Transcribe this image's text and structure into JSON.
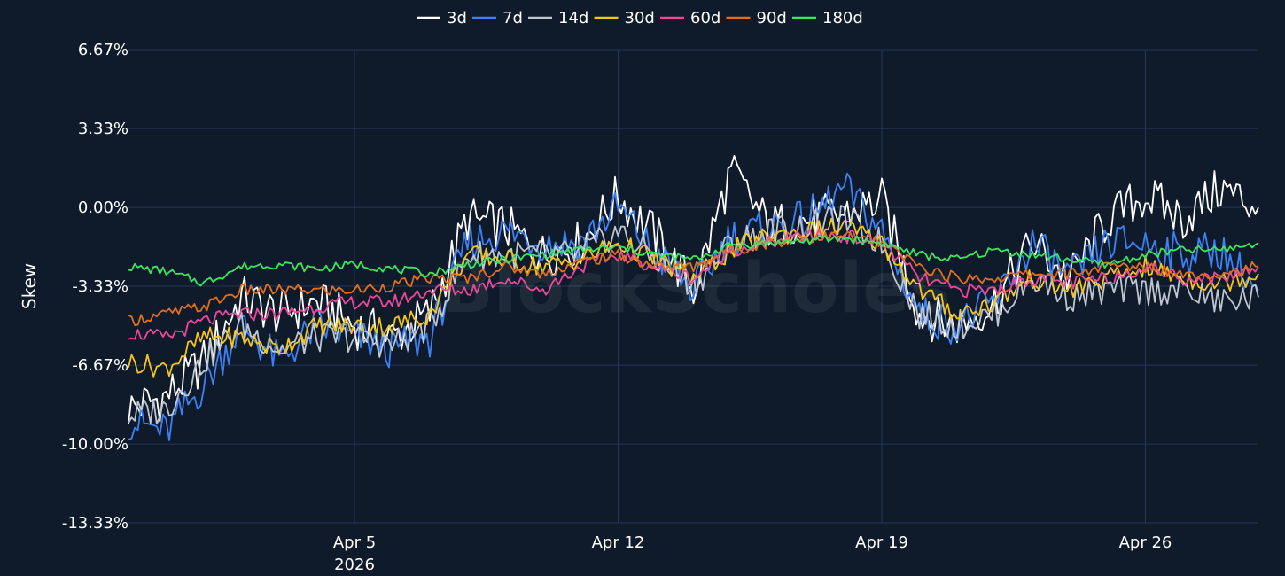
{
  "watermark": "BlockScholes",
  "chart_data": {
    "type": "line",
    "ylabel": "Skew",
    "ylim": [
      -13.33,
      6.67
    ],
    "y_ticks": [
      6.67,
      3.33,
      0.0,
      -3.33,
      -6.67,
      -10.0,
      -13.33
    ],
    "y_tick_labels": [
      "6.67%",
      "3.33%",
      "0.00%",
      "-3.33%",
      "-6.67%",
      "-10.00%",
      "-13.33%"
    ],
    "x_range": [
      "2026-03-30",
      "2026-04-29"
    ],
    "x_ticks": [
      {
        "date": "2026-04-05",
        "label": "Apr 5",
        "sublabel": "2026"
      },
      {
        "date": "2026-04-12",
        "label": "Apr 12",
        "sublabel": ""
      },
      {
        "date": "2026-04-19",
        "label": "Apr 19",
        "sublabel": ""
      },
      {
        "date": "2026-04-26",
        "label": "Apr 26",
        "sublabel": ""
      }
    ],
    "grid": true,
    "legend_position": "top-center",
    "x": [
      "2026-03-30",
      "2026-03-31",
      "2026-04-01",
      "2026-04-02",
      "2026-04-03",
      "2026-04-04",
      "2026-04-05",
      "2026-04-06",
      "2026-04-07",
      "2026-04-08",
      "2026-04-09",
      "2026-04-10",
      "2026-04-11",
      "2026-04-12",
      "2026-04-13",
      "2026-04-14",
      "2026-04-15",
      "2026-04-16",
      "2026-04-17",
      "2026-04-18",
      "2026-04-19",
      "2026-04-20",
      "2026-04-21",
      "2026-04-22",
      "2026-04-23",
      "2026-04-24",
      "2026-04-25",
      "2026-04-26",
      "2026-04-27",
      "2026-04-28",
      "2026-04-29"
    ],
    "series": [
      {
        "name": "3d",
        "color": "#ffffff",
        "values": [
          -8.5,
          -8.0,
          -6.5,
          -3.8,
          -4.5,
          -4.0,
          -5.0,
          -5.5,
          -4.5,
          -0.5,
          -0.8,
          -2.0,
          -1.5,
          0.5,
          -1.2,
          -3.5,
          1.5,
          -0.8,
          -0.5,
          -0.3,
          0.3,
          -4.5,
          -5.0,
          -4.0,
          -1.5,
          -3.0,
          -0.5,
          0.5,
          -0.5,
          0.8,
          0.0
        ]
      },
      {
        "name": "7d",
        "color": "#3b82f6",
        "values": [
          -9.0,
          -9.5,
          -7.5,
          -5.0,
          -6.5,
          -5.0,
          -5.5,
          -6.0,
          -5.5,
          -1.5,
          -1.0,
          -1.5,
          -1.5,
          0.0,
          -2.0,
          -3.5,
          -1.2,
          -0.9,
          -0.5,
          0.8,
          -1.0,
          -4.5,
          -5.0,
          -4.0,
          -1.5,
          -3.0,
          -1.5,
          -1.5,
          -2.0,
          -1.8,
          -3.5
        ]
      },
      {
        "name": "14d",
        "color": "#c0c6d0",
        "values": [
          -8.8,
          -8.5,
          -6.5,
          -5.0,
          -6.0,
          -5.5,
          -5.5,
          -5.8,
          -5.0,
          -2.0,
          -2.0,
          -2.0,
          -2.0,
          -1.0,
          -2.2,
          -3.3,
          -1.5,
          -1.0,
          -0.8,
          -0.5,
          -1.5,
          -4.5,
          -5.0,
          -4.5,
          -3.0,
          -3.8,
          -3.5,
          -3.5,
          -3.5,
          -4.0,
          -3.8
        ]
      },
      {
        "name": "30d",
        "color": "#f5c518",
        "values": [
          -6.5,
          -6.8,
          -5.5,
          -5.5,
          -6.0,
          -5.0,
          -5.0,
          -5.0,
          -4.5,
          -2.0,
          -2.2,
          -2.5,
          -2.2,
          -1.5,
          -2.2,
          -3.0,
          -1.8,
          -1.2,
          -1.0,
          -0.8,
          -1.5,
          -3.5,
          -4.5,
          -4.0,
          -3.0,
          -3.5,
          -3.0,
          -2.5,
          -3.0,
          -3.2,
          -2.8
        ]
      },
      {
        "name": "60d",
        "color": "#ec4899",
        "values": [
          -5.3,
          -5.5,
          -4.8,
          -4.5,
          -4.5,
          -4.2,
          -4.0,
          -4.0,
          -3.5,
          -3.5,
          -3.0,
          -3.5,
          -2.5,
          -2.0,
          -2.5,
          -3.0,
          -1.8,
          -1.5,
          -1.2,
          -1.2,
          -1.5,
          -3.0,
          -3.5,
          -3.5,
          -3.0,
          -3.2,
          -3.0,
          -2.5,
          -3.0,
          -3.0,
          -2.5
        ]
      },
      {
        "name": "90d",
        "color": "#e07020",
        "values": [
          -4.8,
          -4.5,
          -4.2,
          -3.5,
          -3.5,
          -3.5,
          -3.5,
          -3.3,
          -3.0,
          -3.0,
          -2.5,
          -2.8,
          -2.3,
          -2.0,
          -2.5,
          -2.5,
          -1.8,
          -1.5,
          -1.3,
          -1.2,
          -1.5,
          -2.5,
          -3.0,
          -3.0,
          -2.8,
          -2.8,
          -2.5,
          -2.5,
          -2.8,
          -2.8,
          -2.5
        ]
      },
      {
        "name": "180d",
        "color": "#39e75f",
        "values": [
          -2.5,
          -2.7,
          -3.2,
          -2.5,
          -2.4,
          -2.6,
          -2.4,
          -2.6,
          -2.8,
          -2.4,
          -2.2,
          -2.0,
          -1.8,
          -1.7,
          -2.0,
          -2.2,
          -1.6,
          -1.5,
          -1.4,
          -1.3,
          -1.5,
          -2.0,
          -2.2,
          -1.8,
          -2.0,
          -2.2,
          -2.4,
          -2.0,
          -1.8,
          -1.8,
          -1.5
        ]
      }
    ]
  }
}
